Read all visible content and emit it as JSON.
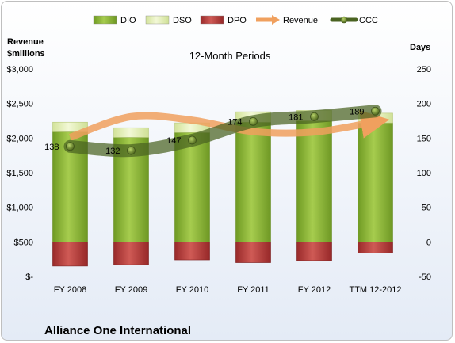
{
  "chart_data": {
    "type": "bar",
    "title": "12-Month Periods",
    "company": "Alliance One International",
    "left_axis_label_line1": "Revenue",
    "left_axis_label_line2": "$millions",
    "right_axis_label": "Days",
    "categories": [
      "FY 2008",
      "FY 2009",
      "FY 2010",
      "FY 2011",
      "FY 2012",
      "TTM 12-2012"
    ],
    "left_ticks": [
      "$3,000",
      "$2,500",
      "$2,000",
      "$1,500",
      "$1,000",
      "$500",
      "$-"
    ],
    "left_ylim": [
      0,
      3000
    ],
    "right_ticks": [
      "250",
      "200",
      "150",
      "100",
      "50",
      "0",
      "-50"
    ],
    "right_ylim": [
      -50,
      250
    ],
    "legend_position": "top",
    "series": [
      {
        "name": "DIO",
        "axis": "days",
        "color": "#8db53a",
        "values": [
          159,
          151,
          158,
          173,
          175,
          172
        ]
      },
      {
        "name": "DSO",
        "axis": "days",
        "color": "#e3efb6",
        "values": [
          14,
          14,
          14,
          15,
          15,
          14
        ]
      },
      {
        "name": "DPO",
        "axis": "days",
        "color": "#b93c3c",
        "values": [
          -35,
          -33,
          -26,
          -30,
          -27,
          -16
        ]
      },
      {
        "name": "Revenue",
        "axis": "revenue",
        "color": "#f0a05e",
        "values": [
          2011,
          2310,
          2259,
          2094,
          2088,
          2235
        ]
      },
      {
        "name": "CCC",
        "axis": "days",
        "color": "#526b27",
        "values": [
          138,
          132,
          147,
          174,
          181,
          189
        ]
      }
    ],
    "ccc_labels": [
      "138",
      "132",
      "147",
      "174",
      "181",
      "189"
    ]
  }
}
